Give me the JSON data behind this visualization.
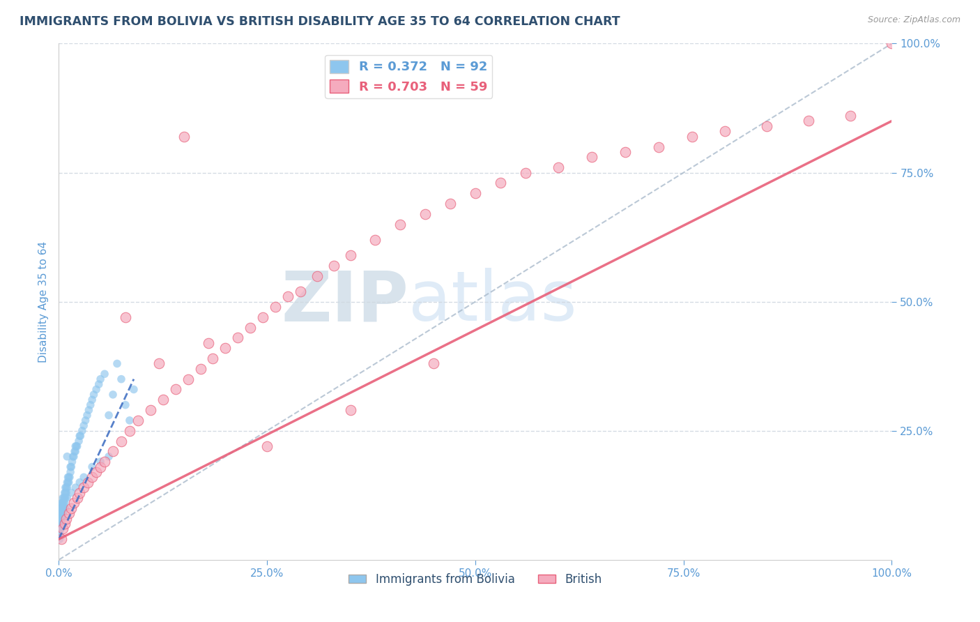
{
  "title": "IMMIGRANTS FROM BOLIVIA VS BRITISH DISABILITY AGE 35 TO 64 CORRELATION CHART",
  "source": "Source: ZipAtlas.com",
  "ylabel": "Disability Age 35 to 64",
  "legend_label1": "Immigrants from Bolivia",
  "legend_label2": "British",
  "R1": 0.372,
  "N1": 92,
  "R2": 0.703,
  "N2": 59,
  "color_blue": "#8EC6EE",
  "color_pink": "#F5ABBE",
  "color_blue_dark": "#4472C4",
  "color_pink_dark": "#E8607A",
  "title_color": "#2F4F6F",
  "axis_tick_color": "#5B9BD5",
  "watermark_color": "#C8DCF0",
  "ref_line_color": "#AABBCC",
  "grid_color": "#D0D8E0",
  "xlim": [
    0,
    1
  ],
  "ylim": [
    0,
    1
  ],
  "xticks": [
    0,
    0.25,
    0.5,
    0.75,
    1.0
  ],
  "yticks": [
    0.25,
    0.5,
    0.75,
    1.0
  ],
  "xticklabels": [
    "0.0%",
    "25.0%",
    "50.0%",
    "75.0%",
    "100.0%"
  ],
  "yticklabels": [
    "25.0%",
    "50.0%",
    "75.0%",
    "100.0%"
  ],
  "blue_x": [
    0.001,
    0.001,
    0.001,
    0.001,
    0.001,
    0.001,
    0.001,
    0.001,
    0.001,
    0.001,
    0.002,
    0.002,
    0.002,
    0.002,
    0.002,
    0.003,
    0.003,
    0.003,
    0.003,
    0.003,
    0.004,
    0.004,
    0.004,
    0.004,
    0.005,
    0.005,
    0.005,
    0.005,
    0.006,
    0.006,
    0.006,
    0.007,
    0.007,
    0.007,
    0.008,
    0.008,
    0.008,
    0.009,
    0.009,
    0.01,
    0.01,
    0.011,
    0.011,
    0.012,
    0.012,
    0.013,
    0.014,
    0.014,
    0.015,
    0.016,
    0.017,
    0.018,
    0.019,
    0.02,
    0.021,
    0.022,
    0.024,
    0.025,
    0.026,
    0.028,
    0.03,
    0.032,
    0.034,
    0.036,
    0.038,
    0.04,
    0.042,
    0.045,
    0.048,
    0.05,
    0.055,
    0.06,
    0.065,
    0.07,
    0.075,
    0.08,
    0.085,
    0.09,
    0.01,
    0.02,
    0.03,
    0.04,
    0.05,
    0.06,
    0.01,
    0.02,
    0.015,
    0.025,
    0.008,
    0.005,
    0.003,
    0.002
  ],
  "blue_y": [
    0.05,
    0.06,
    0.07,
    0.08,
    0.04,
    0.05,
    0.06,
    0.07,
    0.08,
    0.09,
    0.06,
    0.07,
    0.08,
    0.09,
    0.1,
    0.07,
    0.08,
    0.09,
    0.1,
    0.11,
    0.08,
    0.09,
    0.1,
    0.11,
    0.09,
    0.1,
    0.11,
    0.12,
    0.1,
    0.11,
    0.12,
    0.11,
    0.12,
    0.13,
    0.12,
    0.13,
    0.14,
    0.13,
    0.14,
    0.14,
    0.15,
    0.15,
    0.16,
    0.15,
    0.16,
    0.16,
    0.17,
    0.18,
    0.18,
    0.19,
    0.2,
    0.2,
    0.21,
    0.21,
    0.22,
    0.22,
    0.23,
    0.24,
    0.24,
    0.25,
    0.26,
    0.27,
    0.28,
    0.29,
    0.3,
    0.31,
    0.32,
    0.33,
    0.34,
    0.35,
    0.36,
    0.28,
    0.32,
    0.38,
    0.35,
    0.3,
    0.27,
    0.33,
    0.2,
    0.22,
    0.16,
    0.18,
    0.19,
    0.2,
    0.12,
    0.14,
    0.13,
    0.15,
    0.1,
    0.09,
    0.07,
    0.06
  ],
  "pink_x": [
    0.003,
    0.005,
    0.007,
    0.009,
    0.012,
    0.015,
    0.018,
    0.022,
    0.025,
    0.03,
    0.035,
    0.04,
    0.045,
    0.05,
    0.055,
    0.065,
    0.075,
    0.085,
    0.095,
    0.11,
    0.125,
    0.14,
    0.155,
    0.17,
    0.185,
    0.2,
    0.215,
    0.23,
    0.245,
    0.26,
    0.275,
    0.29,
    0.31,
    0.33,
    0.35,
    0.38,
    0.41,
    0.44,
    0.47,
    0.5,
    0.53,
    0.56,
    0.6,
    0.64,
    0.68,
    0.72,
    0.76,
    0.8,
    0.85,
    0.9,
    0.95,
    1.0,
    0.15,
    0.08,
    0.12,
    0.18,
    0.25,
    0.35,
    0.45
  ],
  "pink_y": [
    0.04,
    0.06,
    0.07,
    0.08,
    0.09,
    0.1,
    0.11,
    0.12,
    0.13,
    0.14,
    0.15,
    0.16,
    0.17,
    0.18,
    0.19,
    0.21,
    0.23,
    0.25,
    0.27,
    0.29,
    0.31,
    0.33,
    0.35,
    0.37,
    0.39,
    0.41,
    0.43,
    0.45,
    0.47,
    0.49,
    0.51,
    0.52,
    0.55,
    0.57,
    0.59,
    0.62,
    0.65,
    0.67,
    0.69,
    0.71,
    0.73,
    0.75,
    0.76,
    0.78,
    0.79,
    0.8,
    0.82,
    0.83,
    0.84,
    0.85,
    0.86,
    1.0,
    0.82,
    0.47,
    0.38,
    0.42,
    0.22,
    0.29,
    0.38
  ],
  "blue_trend_x": [
    0.0,
    0.09
  ],
  "blue_trend_y": [
    0.04,
    0.35
  ],
  "pink_trend_x": [
    0.0,
    1.0
  ],
  "pink_trend_y": [
    0.04,
    0.85
  ]
}
